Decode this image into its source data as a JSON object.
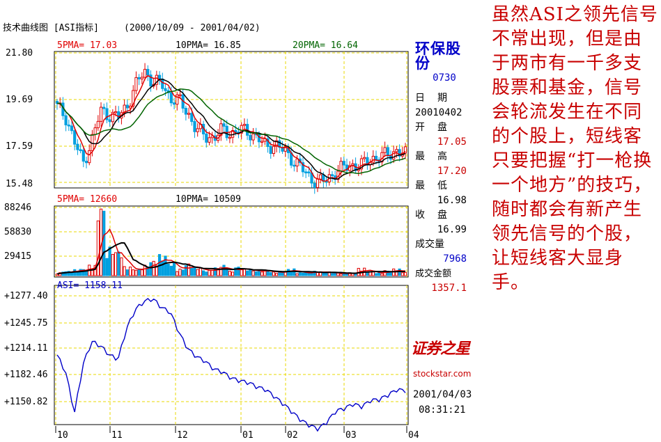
{
  "chart_data": {
    "type": "candlestick",
    "title": "技术曲线图 [ASI指标]",
    "date_range": "(2000/10/09 - 2001/04/02)",
    "x_tick_labels": [
      "10",
      "11",
      "12",
      "01",
      "02",
      "03",
      "04"
    ],
    "price_panel": {
      "ma_labels": [
        "5PMA= 17.03",
        "10PMA= 16.85",
        "20PMA= 16.64"
      ],
      "ma_colors": [
        "#e00000",
        "#000000",
        "#006400"
      ],
      "y_ticks": [
        "21.80",
        "19.69",
        "17.59",
        "15.48"
      ],
      "ylim": [
        15.48,
        21.8
      ],
      "approx_closes": [
        19.3,
        18.8,
        17.6,
        16.6,
        17.7,
        19.1,
        18.9,
        18.8,
        19.3,
        20.3,
        21.0,
        20.5,
        20.4,
        19.7,
        19.6,
        19.0,
        18.2,
        17.9,
        17.8,
        18.2,
        18.0,
        18.2,
        18.1,
        17.8,
        17.4,
        17.5,
        17.2,
        16.8,
        16.4,
        15.9,
        15.7,
        15.8,
        16.2,
        16.4,
        16.5,
        16.5,
        16.8,
        16.9,
        17.0,
        17.2,
        17.0
      ]
    },
    "volume_panel": {
      "ma_labels": [
        "5PMA= 12660",
        "10PMA= 10509"
      ],
      "ma_colors": [
        "#e00000",
        "#000000"
      ],
      "y_ticks": [
        "88246",
        "58830",
        "29415"
      ],
      "ylim": [
        0,
        88246
      ],
      "approx_volumes": [
        4000,
        6000,
        8000,
        9000,
        14000,
        88000,
        38000,
        34000,
        12000,
        9000,
        14000,
        20000,
        28000,
        17000,
        9000,
        16000,
        11000,
        7000,
        11000,
        14000,
        6000,
        12000,
        9000,
        7000,
        8000,
        5000,
        6000,
        9000,
        4000,
        5000,
        6000,
        5000,
        4000,
        3000,
        4000,
        10000,
        6000,
        4000,
        7000,
        9000,
        5000
      ]
    },
    "asi_panel": {
      "label": "ASI= 1158.11",
      "line_color": "#0000c8",
      "y_ticks": [
        "+1277.40",
        "+1245.75",
        "+1214.11",
        "+1182.46",
        "+1150.82"
      ],
      "ylim": [
        1140,
        1282
      ],
      "approx_values": [
        1215,
        1195,
        1150,
        1205,
        1230,
        1225,
        1215,
        1210,
        1245,
        1266,
        1275,
        1278,
        1268,
        1263,
        1240,
        1222,
        1213,
        1208,
        1199,
        1196,
        1189,
        1186,
        1184,
        1179,
        1176,
        1168,
        1160,
        1151,
        1142,
        1136,
        1132,
        1140,
        1152,
        1155,
        1160,
        1157,
        1164,
        1165,
        1170,
        1176,
        1175
      ]
    }
  },
  "info": {
    "stock_name": "环保股份",
    "code": "0730",
    "date_label": [
      "日",
      "期"
    ],
    "date_value": "20010402",
    "open_label": [
      "开",
      "盘"
    ],
    "open_value": "17.05",
    "high_label": [
      "最",
      "高"
    ],
    "high_value": "17.20",
    "low_label": [
      "最",
      "低"
    ],
    "low_value": "16.98",
    "close_label": [
      "收",
      "盘"
    ],
    "close_value": "16.99",
    "volume_label": "成交量",
    "volume_value": "7968",
    "amount_label": "成交金额",
    "amount_value": "1357.1"
  },
  "logo": {
    "cn": "证券之星",
    "en": "stockstar.com"
  },
  "timestamp": {
    "date": "2001/04/03",
    "time": "08:31:21"
  },
  "note": "虽然ASI之领先信号不常出现，但是由于两市有一千多支股票和基金，信号会轮流发生在不同的个股上，短线客只要把握“打一枪换一个地方”的技巧，随时都会有新产生领先信号的个股，让短线客大显身手。"
}
